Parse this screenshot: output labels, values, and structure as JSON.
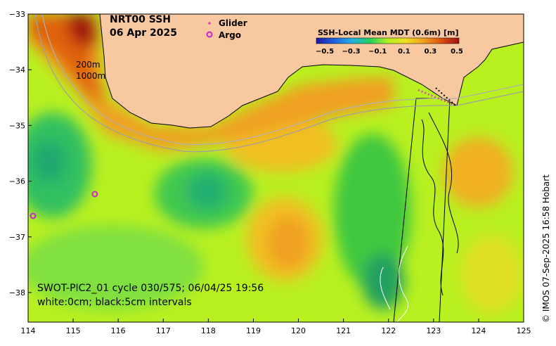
{
  "title": {
    "product": "NRT00 SSH",
    "date": "06 Apr 2025"
  },
  "legend": {
    "glider_label": "Glider",
    "argo_label": "Argo",
    "glider_color": "#e040c0",
    "argo_color": "#d020d0"
  },
  "colorbar": {
    "title": "SSH-Local Mean MDT (0.6m) [m]",
    "ticks": [
      "−0.5",
      "−0.3",
      "−0.1",
      "0.1",
      "0.3",
      "0.5"
    ],
    "stops": [
      "#1a1aa0",
      "#1e60e0",
      "#20b0e0",
      "#20d060",
      "#b0f020",
      "#f0e020",
      "#f0a020",
      "#e05010",
      "#a01010"
    ]
  },
  "isobaths": {
    "label_200": "200m",
    "label_1000": "1000m"
  },
  "swot_info": {
    "line1": "SWOT-PIC2_01 cycle 030/575; 06/04/25 19:56",
    "line2": "white:0cm; black:5cm intervals"
  },
  "credit": "© IMOS 07-Sep-2025 16:58 Hobart",
  "axes": {
    "x_ticks": [
      "114",
      "115",
      "116",
      "117",
      "118",
      "119",
      "120",
      "121",
      "122",
      "123",
      "124",
      "125"
    ],
    "y_ticks": [
      "−33",
      "−34",
      "−35",
      "−36",
      "−37",
      "−38"
    ]
  },
  "colors": {
    "land": "#f8c8a0",
    "background_sea": "#b8f020"
  }
}
